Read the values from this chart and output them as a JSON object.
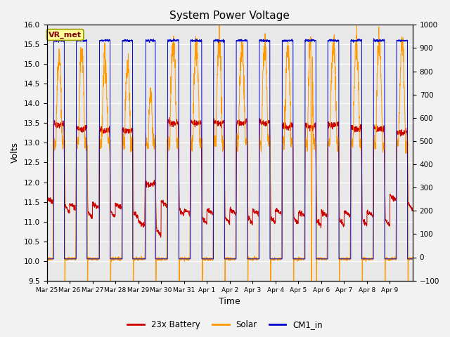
{
  "title": "System Power Voltage",
  "xlabel": "Time",
  "ylabel": "Volts",
  "ylim_left": [
    9.5,
    16.0
  ],
  "ylim_right": [
    -100,
    1000
  ],
  "yticks_left": [
    9.5,
    10.0,
    10.5,
    11.0,
    11.5,
    12.0,
    12.5,
    13.0,
    13.5,
    14.0,
    14.5,
    15.0,
    15.5,
    16.0
  ],
  "yticks_right": [
    -100,
    0,
    100,
    200,
    300,
    400,
    500,
    600,
    700,
    800,
    900,
    1000
  ],
  "x_tick_labels": [
    "Mar 25",
    "Mar 26",
    "Mar 27",
    "Mar 28",
    "Mar 29",
    "Mar 30",
    "Mar 31",
    "Apr 1",
    "Apr 2",
    "Apr 3",
    "Apr 4",
    "Apr 5",
    "Apr 6",
    "Apr 7",
    "Apr 8",
    "Apr 9"
  ],
  "legend_labels": [
    "23x Battery",
    "Solar",
    "CM1_in"
  ],
  "legend_colors": [
    "#cc0000",
    "#ff9900",
    "#0000cc"
  ],
  "vr_met_box_facecolor": "#ffff99",
  "vr_met_text_color": "#800000",
  "vr_met_border_color": "#999900",
  "plot_bg_color": "#e8e8e8",
  "fig_bg_color": "#f2f2f2",
  "title_fontsize": 11,
  "grid_color": "#ffffff",
  "n_days": 16,
  "pts_per_day": 144
}
